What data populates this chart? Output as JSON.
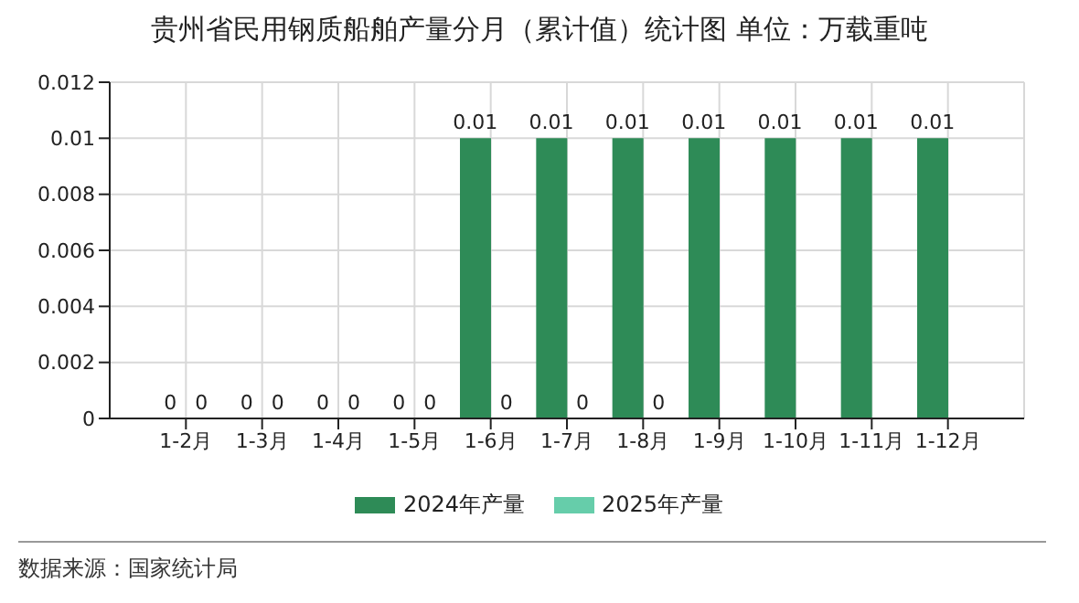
{
  "chart_data": {
    "type": "bar",
    "title": "贵州省民用钢质船舶产量分月（累计值）统计图 单位：万载重吨",
    "categories": [
      "1-2月",
      "1-3月",
      "1-4月",
      "1-5月",
      "1-6月",
      "1-7月",
      "1-8月",
      "1-9月",
      "1-10月",
      "1-11月",
      "1-12月"
    ],
    "series": [
      {
        "name": "2024年产量",
        "color": "#2e8b57",
        "values": [
          0,
          0,
          0,
          0,
          0.01,
          0.01,
          0.01,
          0.01,
          0.01,
          0.01,
          0.01
        ]
      },
      {
        "name": "2025年产量",
        "color": "#66cdaa",
        "values": [
          0,
          0,
          0,
          0,
          0,
          0,
          0,
          null,
          null,
          null,
          null
        ]
      }
    ],
    "ylim": [
      0,
      0.012
    ],
    "yticks": [
      0,
      0.002,
      0.004,
      0.006,
      0.008,
      0.01,
      0.012
    ],
    "grid": true,
    "legend": "bottom",
    "data_labels": true,
    "annotations": [
      "数据来源：国家统计局"
    ]
  }
}
